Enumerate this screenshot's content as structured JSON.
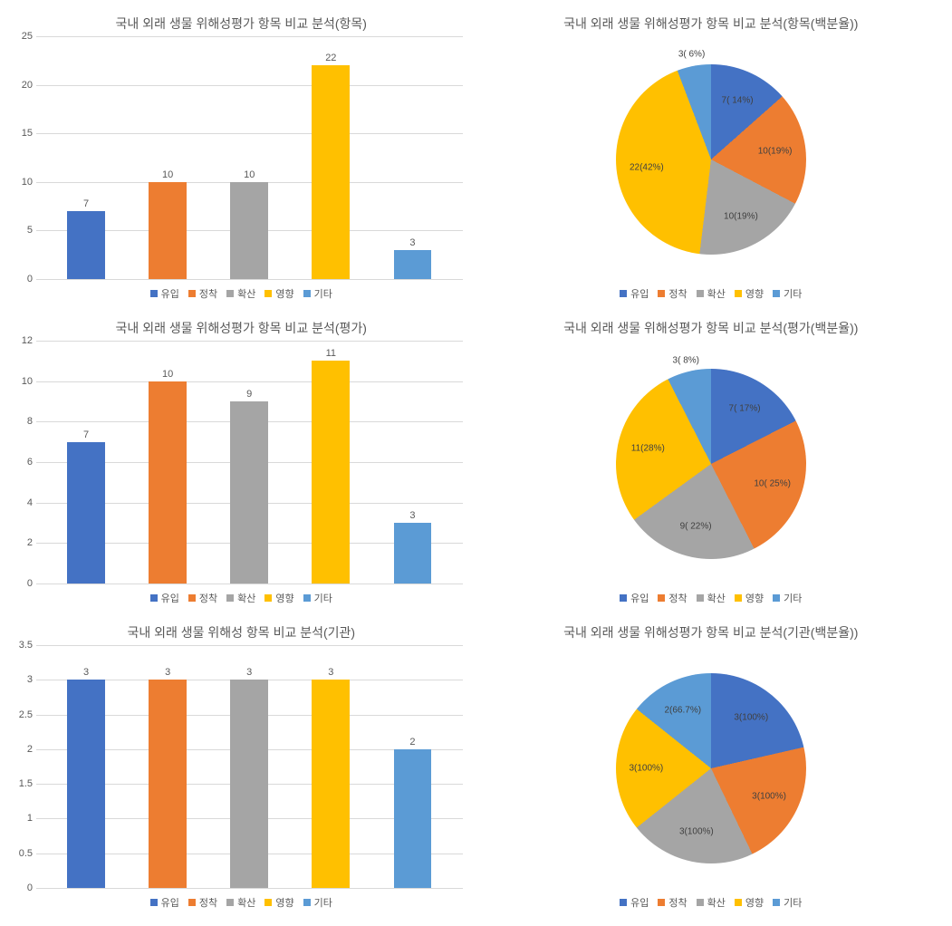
{
  "colors": {
    "series": [
      "#4472c4",
      "#ed7d31",
      "#a5a5a5",
      "#ffc000",
      "#5b9bd5"
    ],
    "grid": "#d9d9d9",
    "text": "#595959",
    "background": "#ffffff"
  },
  "legend_labels": [
    "유입",
    "정착",
    "확산",
    "영향",
    "기타"
  ],
  "title_fontsize": 14,
  "label_fontsize": 11,
  "bar_width_ratio": 0.58,
  "bar1": {
    "type": "bar",
    "title": "국내 외래 생물 위해성평가 항목 비교 분석(항목)",
    "values": [
      7,
      10,
      10,
      22,
      3
    ],
    "ylim": [
      0,
      25
    ],
    "ytick_step": 5
  },
  "bar2": {
    "type": "bar",
    "title": "국내 외래 생물 위해성평가 항목 비교 분석(평가)",
    "values": [
      7,
      10,
      9,
      11,
      3
    ],
    "ylim": [
      0,
      12
    ],
    "ytick_step": 2
  },
  "bar3": {
    "type": "bar",
    "title": "국내  외래 생물 위해성 항목 비교 분석(기관)",
    "values": [
      3,
      3,
      3,
      3,
      2
    ],
    "ylim": [
      0,
      3.5
    ],
    "ytick_step": 0.5
  },
  "pie1": {
    "type": "pie",
    "title": "국내 외래 생물 위해성평가 항목 비교 분석(항목(백분율))",
    "values": [
      7,
      10,
      10,
      22,
      3
    ],
    "slice_labels": [
      "7( 14%)",
      "10(19%)",
      "10(19%)",
      "22(42%)",
      "3( 6%)"
    ]
  },
  "pie2": {
    "type": "pie",
    "title": "국내  외래 생물 위해성평가 항목 비교 분석(평가(백분율))",
    "values": [
      7,
      10,
      9,
      11,
      3
    ],
    "slice_labels": [
      "7( 17%)",
      "10( 25%)",
      "9( 22%)",
      "11(28%)",
      "3( 8%)"
    ]
  },
  "pie3": {
    "type": "pie",
    "title": "국내 외래 생물 위해성평가 항목 비교 분석(기관(백분율))",
    "values": [
      3,
      3,
      3,
      3,
      2
    ],
    "slice_labels": [
      "3(100%)",
      "3(100%)",
      "3(100%)",
      "3(100%)",
      "2(66.7%)"
    ]
  }
}
